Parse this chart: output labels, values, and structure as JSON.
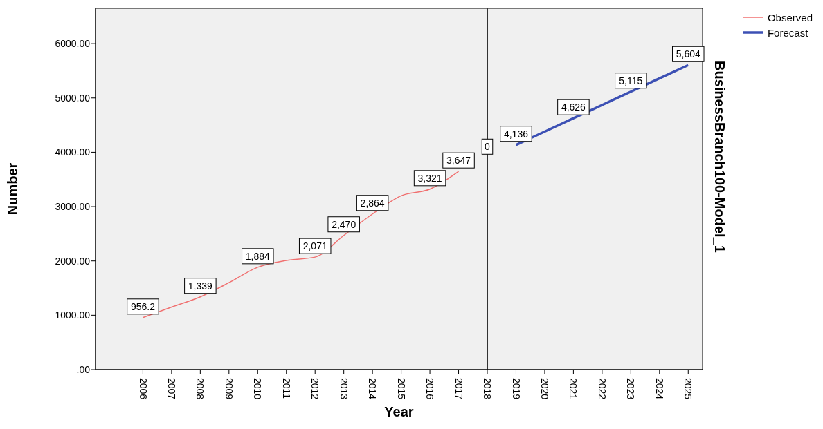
{
  "chart_data": {
    "type": "line",
    "xlabel": "Year",
    "ylabel": "Number",
    "categories": [
      "2006",
      "2007",
      "2008",
      "2009",
      "2010",
      "2011",
      "2012",
      "2013",
      "2014",
      "2015",
      "2016",
      "2017",
      "2018",
      "2019",
      "2020",
      "2021",
      "2022",
      "2023",
      "2024",
      "2025"
    ],
    "series": [
      {
        "name": "Observed",
        "color": "#f07070",
        "values": [
          956.2,
          1150,
          1339,
          1600,
          1884,
          2010,
          2071,
          2470,
          2864,
          3200,
          3321,
          3647,
          null,
          null,
          null,
          null,
          null,
          null,
          null,
          null
        ],
        "value_labels": [
          "956.2",
          null,
          "1,339",
          null,
          "1,884",
          null,
          "2,071",
          "2,470",
          "2,864",
          null,
          "3,321",
          "3,647",
          null,
          null,
          null,
          null,
          null,
          null,
          null,
          null
        ]
      },
      {
        "name": "Forecast",
        "color": "#3c50b4",
        "values": [
          null,
          null,
          null,
          null,
          null,
          null,
          null,
          null,
          null,
          null,
          null,
          null,
          null,
          4136,
          4380,
          4626,
          4870,
          5115,
          5360,
          5604
        ],
        "value_labels": [
          null,
          null,
          null,
          null,
          null,
          null,
          null,
          null,
          null,
          null,
          null,
          null,
          null,
          "4,136",
          null,
          "4,626",
          null,
          "5,115",
          null,
          "5,604"
        ]
      }
    ],
    "ylim": [
      0,
      6650
    ],
    "yticks": [
      {
        "value": 0,
        "label": ".00"
      },
      {
        "value": 1000,
        "label": "1000.00"
      },
      {
        "value": 2000,
        "label": "2000.00"
      },
      {
        "value": 3000,
        "label": "3000.00"
      },
      {
        "value": 4000,
        "label": "4000.00"
      },
      {
        "value": 5000,
        "label": "5000.00"
      },
      {
        "value": 6000,
        "label": "6000.00"
      }
    ],
    "ref_lines": [
      {
        "axis": "x",
        "value": "2018",
        "color": "#333333"
      }
    ],
    "annotations": [
      {
        "text": "0",
        "x": "2018",
        "y": 3900
      },
      "BusinessBranch100-Model_1"
    ],
    "legend": "top right",
    "marker": "none",
    "line_style": "solid"
  }
}
